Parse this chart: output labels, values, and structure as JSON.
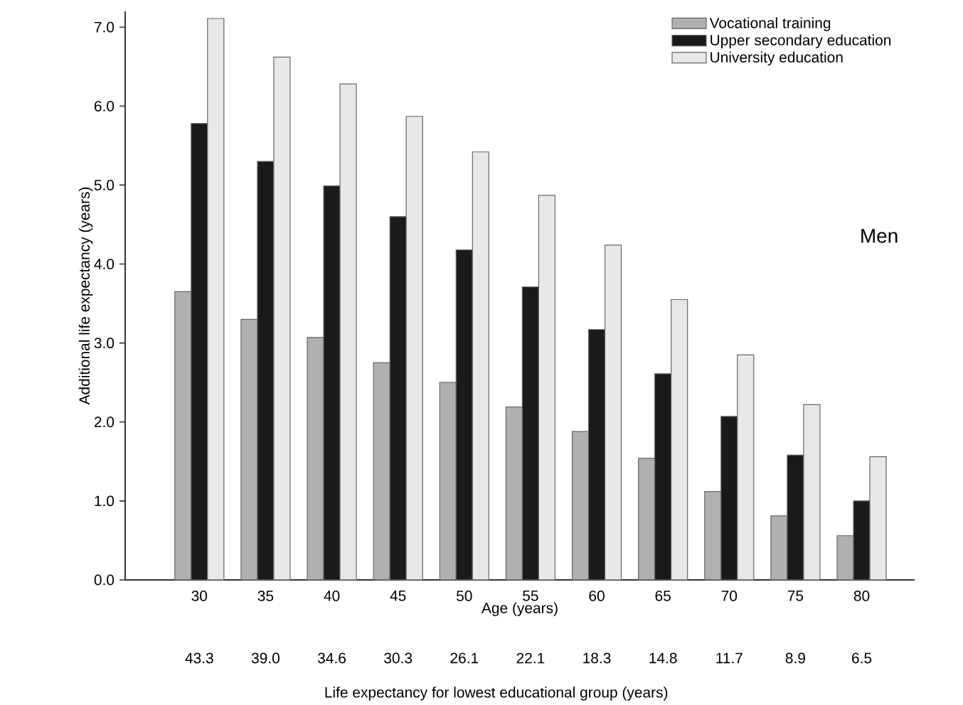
{
  "chart_data": {
    "type": "bar",
    "xlabel": "Age (years)",
    "ylabel": "Additional life expectancy (years)",
    "categories": [
      "30",
      "35",
      "40",
      "45",
      "50",
      "55",
      "60",
      "65",
      "70",
      "75",
      "80"
    ],
    "series": [
      {
        "name": "Vocational training",
        "color": "#b0b0b0",
        "values": [
          3.65,
          3.3,
          3.07,
          2.75,
          2.5,
          2.19,
          1.88,
          1.54,
          1.12,
          0.81,
          0.56
        ]
      },
      {
        "name": "Upper secondary education",
        "color": "#1a1a1a",
        "values": [
          5.78,
          5.3,
          4.99,
          4.6,
          4.18,
          3.71,
          3.17,
          2.61,
          2.07,
          1.58,
          1.0
        ]
      },
      {
        "name": "University education",
        "color": "#e8e8e8",
        "values": [
          7.11,
          6.62,
          6.28,
          5.87,
          5.42,
          4.87,
          4.24,
          3.55,
          2.85,
          2.22,
          1.56
        ]
      }
    ],
    "ylim": [
      0,
      7.2
    ],
    "yticks": [
      {
        "value": 0,
        "label": "0.0"
      },
      {
        "value": 1,
        "label": "1.0"
      },
      {
        "value": 2,
        "label": "2.0"
      },
      {
        "value": 3,
        "label": "3.0"
      },
      {
        "value": 4,
        "label": "4.0"
      },
      {
        "value": 5,
        "label": "5.0"
      },
      {
        "value": 6,
        "label": "6.0"
      },
      {
        "value": 7,
        "label": "7.0"
      }
    ],
    "legend": "top right",
    "annotations": [
      "Men",
      "43.3",
      "39.0",
      "34.6",
      "30.3",
      "26.1",
      "22.1",
      "18.3",
      "14.8",
      "11.7",
      "8.9",
      "6.5",
      "Life expectancy for lowest educational group (years)"
    ]
  }
}
